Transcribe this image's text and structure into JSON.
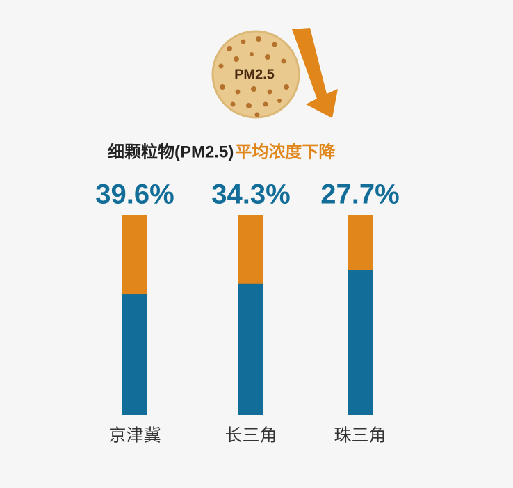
{
  "chart_data": {
    "type": "bar",
    "icon_label": "PM2.5",
    "title": "细颗粒物(PM2.5)",
    "title_highlight": "平均浓度下降",
    "categories": [
      "京津冀",
      "长三角",
      "珠三角"
    ],
    "values": [
      39.6,
      34.3,
      27.7
    ],
    "value_labels": [
      "39.6%",
      "34.3%",
      "27.7%"
    ],
    "color": "#e0861a",
    "base_color": "#126d98",
    "ylim": [
      0,
      100
    ]
  }
}
